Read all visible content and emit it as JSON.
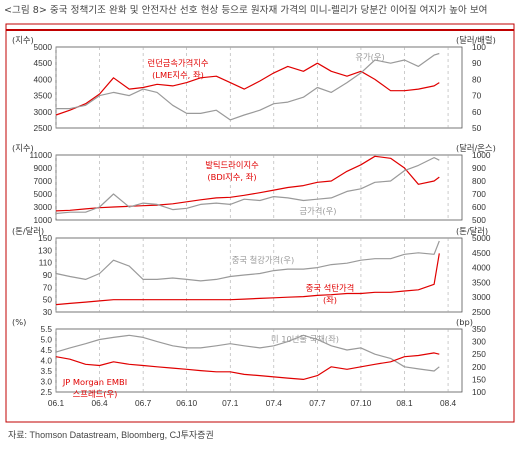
{
  "title": "<그림 8> 중국 정책기조 완화 및 안전자산 선호 현상 등으로 원자재 가격의 미니-렐리가 당분간 이어질 여지가 높아 보여",
  "source": "자료: Thomson Datastream, Bloomberg, CJ투자증권",
  "colors": {
    "red": "#e00000",
    "grey": "#9a9a9a",
    "frame": "#c00000"
  },
  "chart_data": {
    "type": "line",
    "x_ticks": [
      "06.1",
      "06.4",
      "06.7",
      "06.10",
      "07.1",
      "07.4",
      "07.7",
      "07.10",
      "08.1",
      "08.4"
    ],
    "panels": [
      {
        "left_unit": "(지수)",
        "right_unit": "(달러/배럴)",
        "left_ticks": [
          "5000",
          "4500",
          "4000",
          "3500",
          "3000",
          "2500"
        ],
        "right_ticks": [
          "100",
          "90",
          "80",
          "70",
          "60",
          "50"
        ],
        "ylim_left": [
          2500,
          5000
        ],
        "ylim_right": [
          50,
          100
        ],
        "series": [
          {
            "name": "런던금속가격지수 (LME지수, 좌)",
            "axis": "left",
            "color": "red",
            "label_lines": [
              "런던금속가격지수",
              "(LME지수, 좌)"
            ],
            "x": [
              2006.0,
              2006.08,
              2006.17,
              2006.25,
              2006.33,
              2006.42,
              2006.5,
              2006.58,
              2006.67,
              2006.75,
              2006.83,
              2006.92,
              2007.0,
              2007.08,
              2007.17,
              2007.25,
              2007.33,
              2007.42,
              2007.5,
              2007.58,
              2007.67,
              2007.75,
              2007.83,
              2007.92,
              2008.0,
              2008.08,
              2008.17,
              2008.2
            ],
            "values": [
              2900,
              3050,
              3250,
              3550,
              4050,
              3700,
              3750,
              3850,
              3800,
              3900,
              4050,
              4100,
              3900,
              3700,
              3950,
              4200,
              4400,
              4250,
              4500,
              4250,
              4100,
              4250,
              4000,
              3650,
              3650,
              3700,
              3800,
              3900
            ]
          },
          {
            "name": "유가(우)",
            "axis": "right",
            "color": "grey",
            "label_lines": [
              "유가(우)"
            ],
            "x": [
              2006.0,
              2006.08,
              2006.17,
              2006.25,
              2006.33,
              2006.42,
              2006.5,
              2006.58,
              2006.67,
              2006.75,
              2006.83,
              2006.92,
              2007.0,
              2007.08,
              2007.17,
              2007.25,
              2007.33,
              2007.42,
              2007.5,
              2007.58,
              2007.67,
              2007.75,
              2007.83,
              2007.92,
              2008.0,
              2008.08,
              2008.17,
              2008.2
            ],
            "values": [
              62,
              62,
              64,
              70,
              72,
              70,
              74,
              72,
              64,
              59,
              59,
              61,
              55,
              58,
              61,
              65,
              66,
              69,
              75,
              72,
              78,
              84,
              92,
              90,
              92,
              88,
              95,
              96
            ]
          }
        ]
      },
      {
        "left_unit": "(지수)",
        "right_unit": "(달러/온스)",
        "left_ticks": [
          "11000",
          "9000",
          "7000",
          "5000",
          "3000",
          "1000"
        ],
        "right_ticks": [
          "1000",
          "900",
          "800",
          "700",
          "600",
          "500"
        ],
        "ylim_left": [
          1000,
          11000
        ],
        "ylim_right": [
          500,
          1000
        ],
        "series": [
          {
            "name": "발틱드라이지수 (BDI지수, 좌)",
            "axis": "left",
            "color": "red",
            "label_lines": [
              "발틱드라이지수",
              "(BDI지수, 좌)"
            ],
            "x": [
              2006.0,
              2006.08,
              2006.17,
              2006.25,
              2006.33,
              2006.42,
              2006.5,
              2006.58,
              2006.67,
              2006.75,
              2006.83,
              2006.92,
              2007.0,
              2007.08,
              2007.17,
              2007.25,
              2007.33,
              2007.42,
              2007.5,
              2007.58,
              2007.67,
              2007.75,
              2007.83,
              2007.92,
              2008.0,
              2008.08,
              2008.17,
              2008.2
            ],
            "values": [
              2400,
              2500,
              2700,
              2900,
              3000,
              3100,
              3200,
              3300,
              3500,
              3800,
              4100,
              4400,
              4500,
              4800,
              5200,
              5600,
              6000,
              6300,
              6800,
              7000,
              8500,
              9500,
              10800,
              10500,
              9000,
              6500,
              7000,
              7600
            ]
          },
          {
            "name": "금가격(우)",
            "axis": "right",
            "color": "grey",
            "label_lines": [
              "금가격(우)"
            ],
            "x": [
              2006.0,
              2006.08,
              2006.17,
              2006.25,
              2006.33,
              2006.42,
              2006.5,
              2006.58,
              2006.67,
              2006.75,
              2006.83,
              2006.92,
              2007.0,
              2007.08,
              2007.17,
              2007.25,
              2007.33,
              2007.42,
              2007.5,
              2007.58,
              2007.67,
              2007.75,
              2007.83,
              2007.92,
              2008.0,
              2008.08,
              2008.17,
              2008.2
            ],
            "values": [
              550,
              560,
              560,
              600,
              700,
              600,
              630,
              620,
              580,
              590,
              620,
              630,
              620,
              660,
              650,
              680,
              670,
              650,
              660,
              670,
              720,
              740,
              790,
              800,
              880,
              920,
              980,
              960
            ]
          }
        ]
      },
      {
        "left_unit": "(톤/달러)",
        "right_unit": "(톤/달러)",
        "left_ticks": [
          "150",
          "130",
          "110",
          "90",
          "70",
          "50",
          "30"
        ],
        "right_ticks": [
          "5000",
          "4500",
          "4000",
          "3500",
          "3000",
          "2500"
        ],
        "ylim_left": [
          30,
          150
        ],
        "ylim_right": [
          2500,
          5000
        ],
        "series": [
          {
            "name": "중국 철강가격(우)",
            "axis": "right",
            "color": "grey",
            "label_lines": [
              "중국 철강가격(우)"
            ],
            "x": [
              2006.0,
              2006.08,
              2006.17,
              2006.25,
              2006.33,
              2006.42,
              2006.5,
              2006.58,
              2006.67,
              2006.75,
              2006.83,
              2006.92,
              2007.0,
              2007.08,
              2007.17,
              2007.25,
              2007.33,
              2007.42,
              2007.5,
              2007.58,
              2007.67,
              2007.75,
              2007.83,
              2007.92,
              2008.0,
              2008.08,
              2008.17,
              2008.2
            ],
            "values": [
              3800,
              3700,
              3600,
              3800,
              4250,
              4050,
              3600,
              3600,
              3650,
              3600,
              3550,
              3600,
              3700,
              3750,
              3800,
              3900,
              3950,
              3950,
              4000,
              4100,
              4150,
              4250,
              4300,
              4300,
              4450,
              4500,
              4450,
              4900
            ]
          },
          {
            "name": "중국 석탄가격 (좌)",
            "axis": "left",
            "color": "red",
            "label_lines": [
              "중국 석탄가격",
              "(좌)"
            ],
            "x": [
              2006.0,
              2006.08,
              2006.17,
              2006.25,
              2006.33,
              2006.42,
              2006.5,
              2006.58,
              2006.67,
              2006.75,
              2006.83,
              2006.92,
              2007.0,
              2007.08,
              2007.17,
              2007.25,
              2007.33,
              2007.42,
              2007.5,
              2007.58,
              2007.67,
              2007.75,
              2007.83,
              2007.92,
              2008.0,
              2008.08,
              2008.17,
              2008.2
            ],
            "values": [
              42,
              44,
              46,
              48,
              50,
              50,
              50,
              50,
              50,
              50,
              50,
              50,
              50,
              51,
              52,
              53,
              54,
              55,
              57,
              58,
              60,
              60,
              62,
              62,
              64,
              66,
              75,
              125
            ]
          }
        ]
      },
      {
        "left_unit": "(%)",
        "right_unit": "(bp)",
        "left_ticks": [
          "5.5",
          "5.0",
          "4.5",
          "4.0",
          "3.5",
          "3.0",
          "2.5"
        ],
        "right_ticks": [
          "350",
          "300",
          "250",
          "200",
          "150",
          "100"
        ],
        "ylim_left": [
          2.5,
          5.5
        ],
        "ylim_right": [
          100,
          350
        ],
        "series": [
          {
            "name": "미 10년물 국채(좌)",
            "axis": "left",
            "color": "grey",
            "label_lines": [
              "미 10년물 국채(좌)"
            ],
            "x": [
              2006.0,
              2006.08,
              2006.17,
              2006.25,
              2006.33,
              2006.42,
              2006.5,
              2006.58,
              2006.67,
              2006.75,
              2006.83,
              2006.92,
              2007.0,
              2007.08,
              2007.17,
              2007.25,
              2007.33,
              2007.42,
              2007.5,
              2007.58,
              2007.67,
              2007.75,
              2007.83,
              2007.92,
              2008.0,
              2008.08,
              2008.17,
              2008.2
            ],
            "values": [
              4.4,
              4.6,
              4.8,
              5.0,
              5.1,
              5.2,
              5.1,
              4.9,
              4.7,
              4.6,
              4.6,
              4.7,
              4.8,
              4.7,
              4.6,
              4.7,
              4.9,
              5.2,
              5.0,
              4.7,
              4.5,
              4.6,
              4.3,
              4.1,
              3.7,
              3.6,
              3.5,
              3.7
            ]
          },
          {
            "name": "JP Morgan EMBI 스프레드(우)",
            "axis": "right",
            "color": "red",
            "label_lines": [
              "JP Morgan EMBI",
              "스프레드(우)"
            ],
            "x": [
              2006.0,
              2006.08,
              2006.17,
              2006.25,
              2006.33,
              2006.42,
              2006.5,
              2006.58,
              2006.67,
              2006.75,
              2006.83,
              2006.92,
              2007.0,
              2007.08,
              2007.17,
              2007.25,
              2007.33,
              2007.42,
              2007.5,
              2007.58,
              2007.67,
              2007.75,
              2007.83,
              2007.92,
              2008.0,
              2008.08,
              2008.17,
              2008.2
            ],
            "values": [
              240,
              230,
              210,
              205,
              220,
              210,
              205,
              200,
              195,
              190,
              185,
              180,
              180,
              170,
              165,
              160,
              155,
              150,
              165,
              200,
              190,
              200,
              210,
              220,
              240,
              245,
              255,
              250
            ]
          }
        ]
      }
    ]
  }
}
